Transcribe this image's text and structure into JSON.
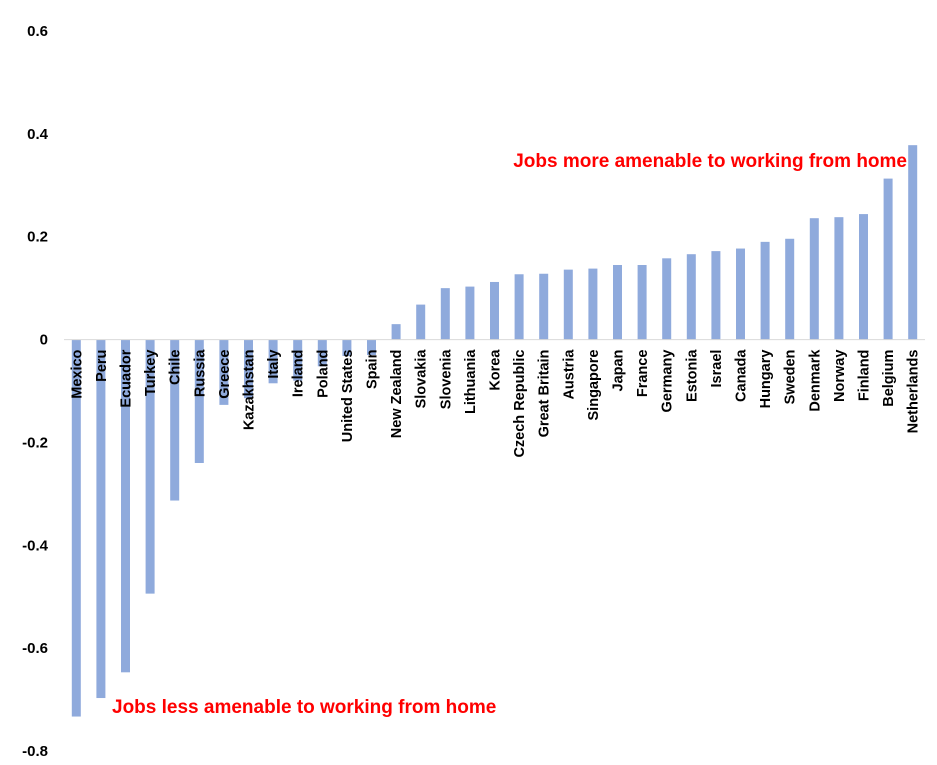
{
  "colors": {
    "bar": "#8faadc",
    "axis": "#d9d9d9",
    "annotation": "#ff0000"
  },
  "chart_data": {
    "type": "bar",
    "title": "",
    "xlabel": "",
    "ylabel": "",
    "ylim": [
      -0.8,
      0.6
    ],
    "yticks": [
      0.6,
      0.4,
      0.2,
      0,
      -0.2,
      -0.4,
      -0.6,
      -0.8
    ],
    "ytick_labels": [
      "0.6",
      "0.4",
      "0.2",
      "0",
      "-0.2",
      "-0.4",
      "-0.6",
      "-0.8"
    ],
    "grid": false,
    "legend": "none",
    "categories": [
      "Mexico",
      "Peru",
      "Ecuador",
      "Turkey",
      "Chile",
      "Russia",
      "Greece",
      "Kazakhstan",
      "Italy",
      "Ireland",
      "Poland",
      "United States",
      "Spain",
      "New Zealand",
      "Slovakia",
      "Slovenia",
      "Lithuania",
      "Korea",
      "Czech Republic",
      "Great Britain",
      "Austria",
      "Singapore",
      "Japan",
      "France",
      "Germany",
      "Estonia",
      "Israel",
      "Canada",
      "Hungary",
      "Sweden",
      "Denmark",
      "Norway",
      "Finland",
      "Belgium",
      "Netherlands"
    ],
    "values": [
      -0.733,
      -0.697,
      -0.647,
      -0.494,
      -0.313,
      -0.24,
      -0.127,
      -0.114,
      -0.085,
      -0.08,
      -0.052,
      -0.032,
      -0.03,
      0.03,
      0.068,
      0.1,
      0.103,
      0.112,
      0.127,
      0.128,
      0.136,
      0.138,
      0.145,
      0.145,
      0.158,
      0.166,
      0.172,
      0.177,
      0.19,
      0.196,
      0.236,
      0.238,
      0.244,
      0.313,
      0.378
    ],
    "annotations": [
      {
        "text": "Jobs more amenable to working from home",
        "anchor": "top-right"
      },
      {
        "text": "Jobs less amenable to working from home",
        "anchor": "bottom-left"
      }
    ]
  }
}
